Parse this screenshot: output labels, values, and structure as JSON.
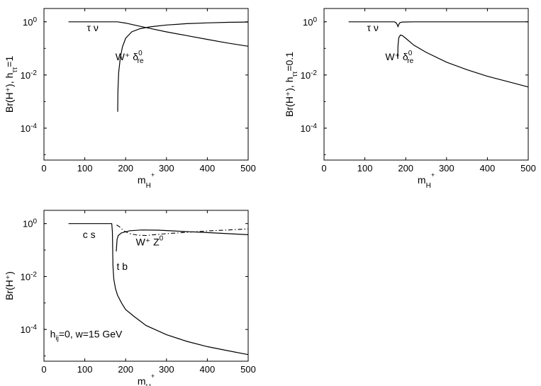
{
  "chart_data": [
    {
      "type": "line",
      "xlabel": "m",
      "xlabel_sub": "H",
      "xlabel_sup": "+",
      "ylabel": "Br(H⁺), h",
      "ylabel_sub": "ττ",
      "ylabel_tail": "=1",
      "xlim": [
        0,
        500
      ],
      "ylim_log10": [
        -5.2,
        0.5
      ],
      "xticks": [
        "0",
        "100",
        "200",
        "300",
        "400",
        "500"
      ],
      "yticks": [
        {
          "base": "10",
          "exp": "0"
        },
        {
          "base": "10",
          "exp": "-2"
        },
        {
          "base": "10",
          "exp": "-4"
        }
      ],
      "annotations": [
        {
          "text": "τ ν",
          "x": 105,
          "log10y": -0.35
        },
        {
          "text": "W⁺ δ",
          "sup": "0",
          "sub": "re",
          "x": 175,
          "log10y": -1.45
        }
      ],
      "series": [
        {
          "style": "solid",
          "points": [
            [
              60,
              0
            ],
            [
              180,
              0
            ],
            [
              200,
              -0.05
            ],
            [
              230,
              -0.15
            ],
            [
              260,
              -0.25
            ],
            [
              300,
              -0.38
            ],
            [
              350,
              -0.52
            ],
            [
              400,
              -0.66
            ],
            [
              450,
              -0.8
            ],
            [
              500,
              -0.92
            ]
          ]
        },
        {
          "style": "solid",
          "points": [
            [
              180.5,
              -3.38
            ],
            [
              181,
              -2.6
            ],
            [
              183,
              -1.9
            ],
            [
              187,
              -1.35
            ],
            [
              192,
              -0.95
            ],
            [
              200,
              -0.62
            ],
            [
              215,
              -0.38
            ],
            [
              235,
              -0.26
            ],
            [
              260,
              -0.19
            ],
            [
              300,
              -0.12
            ],
            [
              350,
              -0.07
            ],
            [
              400,
              -0.04
            ],
            [
              450,
              -0.02
            ],
            [
              500,
              -0.01
            ]
          ]
        }
      ]
    },
    {
      "type": "line",
      "xlabel": "m",
      "xlabel_sub": "H",
      "xlabel_sup": "+",
      "ylabel": "Br(H⁺), h",
      "ylabel_sub": "ττ",
      "ylabel_tail": "=0.1",
      "xlim": [
        0,
        500
      ],
      "ylim_log10": [
        -5.2,
        0.5
      ],
      "xticks": [
        "0",
        "100",
        "200",
        "300",
        "400",
        "500"
      ],
      "yticks": [
        {
          "base": "10",
          "exp": "0"
        },
        {
          "base": "10",
          "exp": "-2"
        },
        {
          "base": "10",
          "exp": "-4"
        }
      ],
      "annotations": [
        {
          "text": "τ ν",
          "x": 105,
          "log10y": -0.35
        },
        {
          "text": "W⁺ δ",
          "sup": "0",
          "sub": "re",
          "x": 150,
          "log10y": -1.45
        }
      ],
      "series": [
        {
          "style": "solid",
          "points": [
            [
              60,
              0
            ],
            [
              172,
              0
            ],
            [
              176,
              -0.03
            ],
            [
              179,
              -0.1
            ],
            [
              181,
              -0.18
            ],
            [
              183,
              -0.1
            ],
            [
              186,
              -0.03
            ],
            [
              192,
              -0.01
            ],
            [
              220,
              0
            ],
            [
              500,
              0
            ]
          ]
        },
        {
          "style": "solid",
          "points": [
            [
              180.5,
              -1.4
            ],
            [
              181,
              -0.9
            ],
            [
              183,
              -0.6
            ],
            [
              187,
              -0.5
            ],
            [
              192,
              -0.52
            ],
            [
              200,
              -0.62
            ],
            [
              220,
              -0.88
            ],
            [
              250,
              -1.15
            ],
            [
              300,
              -1.52
            ],
            [
              350,
              -1.8
            ],
            [
              400,
              -2.05
            ],
            [
              450,
              -2.25
            ],
            [
              500,
              -2.45
            ]
          ]
        }
      ]
    },
    {
      "type": "line",
      "xlabel": "m",
      "xlabel_sub": "H",
      "xlabel_sup": "+",
      "ylabel": "Br(H⁺)",
      "ylabel_sub": "",
      "ylabel_tail": "",
      "xlim": [
        0,
        500
      ],
      "ylim_log10": [
        -5.2,
        0.5
      ],
      "xticks": [
        "0",
        "100",
        "200",
        "300",
        "400",
        "500"
      ],
      "yticks": [
        {
          "base": "10",
          "exp": "0"
        },
        {
          "base": "10",
          "exp": "-2"
        },
        {
          "base": "10",
          "exp": "-4"
        }
      ],
      "annotations": [
        {
          "text": "c s",
          "x": 95,
          "log10y": -0.55
        },
        {
          "text": "W⁺ Z",
          "sup": "0",
          "x": 225,
          "log10y": -0.82
        },
        {
          "text": "t b",
          "x": 178,
          "log10y": -1.75
        },
        {
          "text": "h",
          "sub": "ij",
          "tail": "=0, w=15 GeV",
          "x": 15,
          "log10y": -4.3
        }
      ],
      "series": [
        {
          "style": "solid",
          "points": [
            [
              60,
              0
            ],
            [
              166,
              0
            ],
            [
              167.5,
              -0.3
            ],
            [
              169,
              -1.6
            ],
            [
              171,
              -2.1
            ],
            [
              175,
              -2.45
            ],
            [
              180,
              -2.7
            ],
            [
              190,
              -3.0
            ],
            [
              200,
              -3.25
            ],
            [
              220,
              -3.5
            ],
            [
              250,
              -3.85
            ],
            [
              300,
              -4.2
            ],
            [
              350,
              -4.45
            ],
            [
              400,
              -4.65
            ],
            [
              450,
              -4.8
            ],
            [
              500,
              -4.95
            ]
          ]
        },
        {
          "style": "solid",
          "points": [
            [
              177,
              -1.05
            ],
            [
              179,
              -0.6
            ],
            [
              182,
              -0.45
            ],
            [
              190,
              -0.35
            ],
            [
              210,
              -0.27
            ],
            [
              240,
              -0.24
            ],
            [
              280,
              -0.25
            ],
            [
              320,
              -0.28
            ],
            [
              360,
              -0.31
            ],
            [
              400,
              -0.34
            ],
            [
              450,
              -0.38
            ],
            [
              500,
              -0.42
            ]
          ]
        },
        {
          "style": "dashdot",
          "points": [
            [
              178,
              -0.05
            ],
            [
              185,
              -0.12
            ],
            [
              195,
              -0.27
            ],
            [
              210,
              -0.38
            ],
            [
              230,
              -0.44
            ],
            [
              250,
              -0.45
            ],
            [
              270,
              -0.42
            ],
            [
              300,
              -0.38
            ],
            [
              350,
              -0.33
            ],
            [
              400,
              -0.28
            ],
            [
              450,
              -0.24
            ],
            [
              500,
              -0.2
            ]
          ]
        }
      ]
    }
  ]
}
